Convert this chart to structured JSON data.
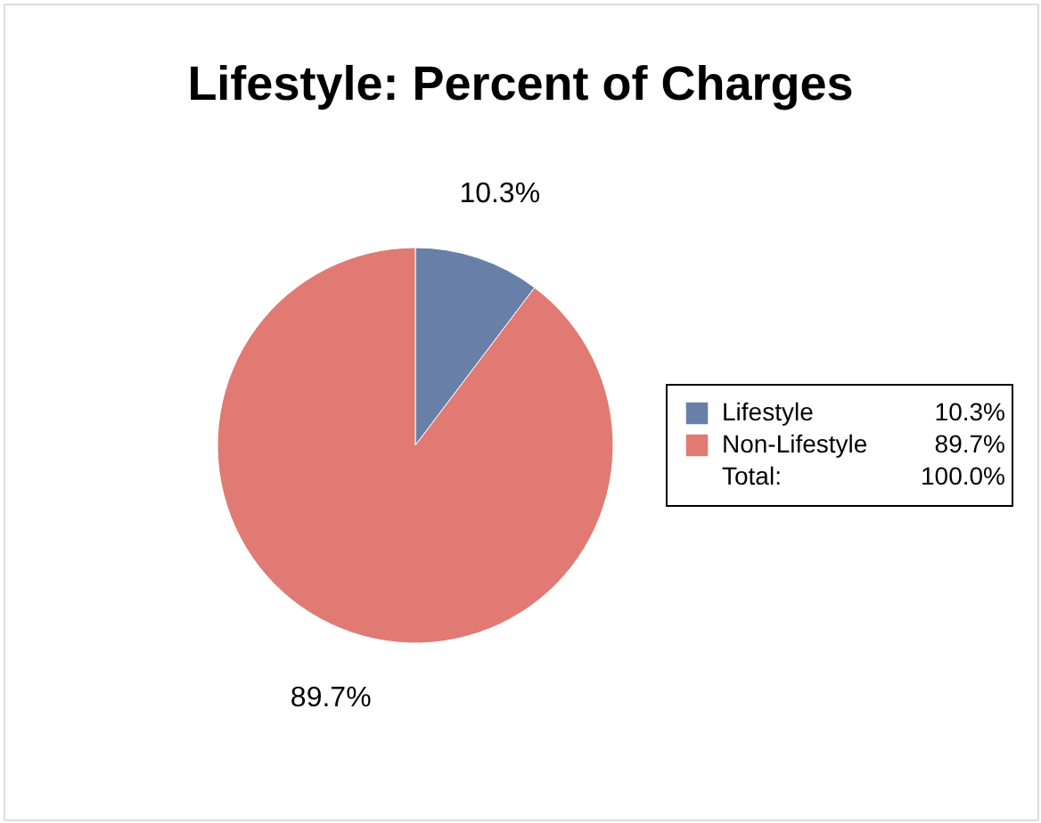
{
  "chart_data": {
    "type": "pie",
    "title": "Lifestyle: Percent of Charges",
    "categories": [
      "Lifestyle",
      "Non-Lifestyle"
    ],
    "values": [
      10.3,
      89.7
    ],
    "colors": [
      "#6880a8",
      "#e07a72"
    ],
    "value_labels": [
      "10.3%",
      "89.7%"
    ],
    "legend": "right",
    "annotations": [
      "Total:",
      "100.0%"
    ]
  }
}
